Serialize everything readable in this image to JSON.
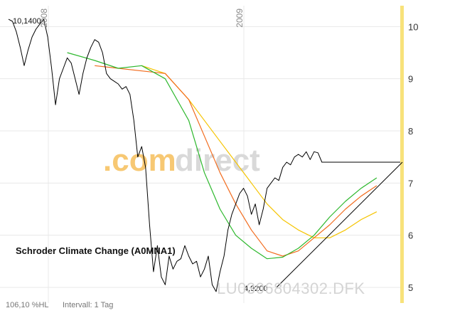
{
  "chart_data": {
    "type": "line",
    "title": "Schroder Climate Change (A0MNA1)",
    "watermark": {
      "part1": ".com",
      "part2": "direct",
      "color1": "#f7c873",
      "color2": "#d9d9d9"
    },
    "isin_label": "LU0306804302.DFK",
    "footer": {
      "change": "106,10 %HL",
      "interval": "Intervall: 1 Tag"
    },
    "y_ticks": [
      "10",
      "9",
      "8",
      "7",
      "6",
      "5"
    ],
    "ylim": [
      4.7,
      10.4
    ],
    "x_ticks": [
      "2008",
      "2009"
    ],
    "annotations": {
      "high": "10,1400",
      "low": "4,9200"
    },
    "colors": {
      "price": "#000000",
      "ma_short": "#2db82d",
      "ma_mid": "#f26b1d",
      "ma_long": "#f5c400",
      "axis_band": "#f8e27a",
      "grid": "#e8e8e8"
    },
    "series": [
      {
        "key": "price",
        "x": [
          0,
          0.01,
          0.02,
          0.03,
          0.04,
          0.05,
          0.06,
          0.07,
          0.08,
          0.09,
          0.1,
          0.11,
          0.12,
          0.13,
          0.14,
          0.15,
          0.16,
          0.17,
          0.18,
          0.19,
          0.2,
          0.21,
          0.22,
          0.23,
          0.24,
          0.25,
          0.26,
          0.27,
          0.28,
          0.29,
          0.3,
          0.31,
          0.32,
          0.33,
          0.34,
          0.35,
          0.36,
          0.37,
          0.38,
          0.39,
          0.4,
          0.41,
          0.42,
          0.43,
          0.44,
          0.45,
          0.46,
          0.47,
          0.48,
          0.49,
          0.5,
          0.51,
          0.52,
          0.53,
          0.54,
          0.55,
          0.56,
          0.57,
          0.58,
          0.59,
          0.6,
          0.61,
          0.62,
          0.63,
          0.64,
          0.65,
          0.66,
          0.67,
          0.68,
          0.69,
          0.7,
          0.71,
          0.72,
          0.73,
          0.74,
          0.75,
          0.76,
          0.77,
          0.78,
          0.79,
          0.8,
          0.81,
          0.82,
          0.83,
          0.84,
          0.85,
          0.86,
          0.87,
          0.88,
          0.89,
          0.9,
          0.91,
          0.92,
          0.93,
          0.94,
          0.95,
          0.96,
          0.97,
          0.98,
          0.99,
          1.0
        ],
        "values": [
          10.14,
          10.1,
          9.9,
          9.6,
          9.25,
          9.55,
          9.8,
          9.95,
          10.05,
          10.14,
          9.8,
          9.2,
          8.5,
          9.0,
          9.2,
          9.4,
          9.3,
          9.0,
          8.7,
          9.1,
          9.4,
          9.6,
          9.75,
          9.7,
          9.5,
          9.1,
          9.0,
          8.95,
          8.9,
          8.8,
          8.85,
          8.7,
          8.2,
          7.5,
          7.7,
          7.3,
          6.2,
          5.3,
          5.8,
          5.2,
          5.05,
          5.6,
          5.35,
          5.5,
          5.55,
          5.8,
          5.6,
          5.45,
          5.5,
          5.2,
          5.35,
          5.6,
          5.05,
          4.92,
          5.3,
          5.6,
          6.1,
          6.4,
          6.6,
          6.8,
          6.9,
          6.75,
          6.4,
          6.6,
          6.2,
          6.5,
          6.9,
          7.0,
          7.1,
          7.05,
          7.3,
          7.4,
          7.35,
          7.5,
          7.55,
          7.5,
          7.6,
          7.45,
          7.6,
          7.58,
          7.4,
          7.4,
          7.4,
          7.4,
          7.4,
          7.4,
          7.4,
          7.4,
          7.4,
          7.4,
          7.4,
          7.4,
          7.4,
          7.4,
          7.4,
          7.4,
          7.4,
          7.4,
          7.4,
          7.4,
          7.4
        ]
      },
      {
        "key": "ma_short",
        "x": [
          0.15,
          0.22,
          0.28,
          0.34,
          0.4,
          0.46,
          0.5,
          0.54,
          0.58,
          0.62,
          0.66,
          0.7,
          0.74,
          0.78,
          0.82,
          0.86,
          0.9,
          0.94
        ],
        "values": [
          9.5,
          9.35,
          9.2,
          9.25,
          9.0,
          8.2,
          7.2,
          6.5,
          6.0,
          5.75,
          5.55,
          5.58,
          5.75,
          6.0,
          6.35,
          6.65,
          6.9,
          7.1
        ]
      },
      {
        "key": "ma_mid",
        "x": [
          0.22,
          0.28,
          0.34,
          0.4,
          0.46,
          0.5,
          0.54,
          0.58,
          0.62,
          0.66,
          0.7,
          0.74,
          0.78,
          0.82,
          0.86,
          0.9,
          0.94
        ],
        "values": [
          9.25,
          9.2,
          9.15,
          9.1,
          8.6,
          7.9,
          7.2,
          6.6,
          6.1,
          5.7,
          5.6,
          5.7,
          5.95,
          6.2,
          6.5,
          6.75,
          6.95
        ]
      },
      {
        "key": "ma_long",
        "x": [
          0.34,
          0.4,
          0.46,
          0.5,
          0.54,
          0.58,
          0.62,
          0.66,
          0.7,
          0.74,
          0.78,
          0.82,
          0.86,
          0.9,
          0.94
        ],
        "values": [
          9.25,
          9.1,
          8.6,
          8.2,
          7.8,
          7.4,
          7.0,
          6.6,
          6.3,
          6.1,
          5.95,
          5.95,
          6.1,
          6.3,
          6.45
        ]
      }
    ]
  }
}
